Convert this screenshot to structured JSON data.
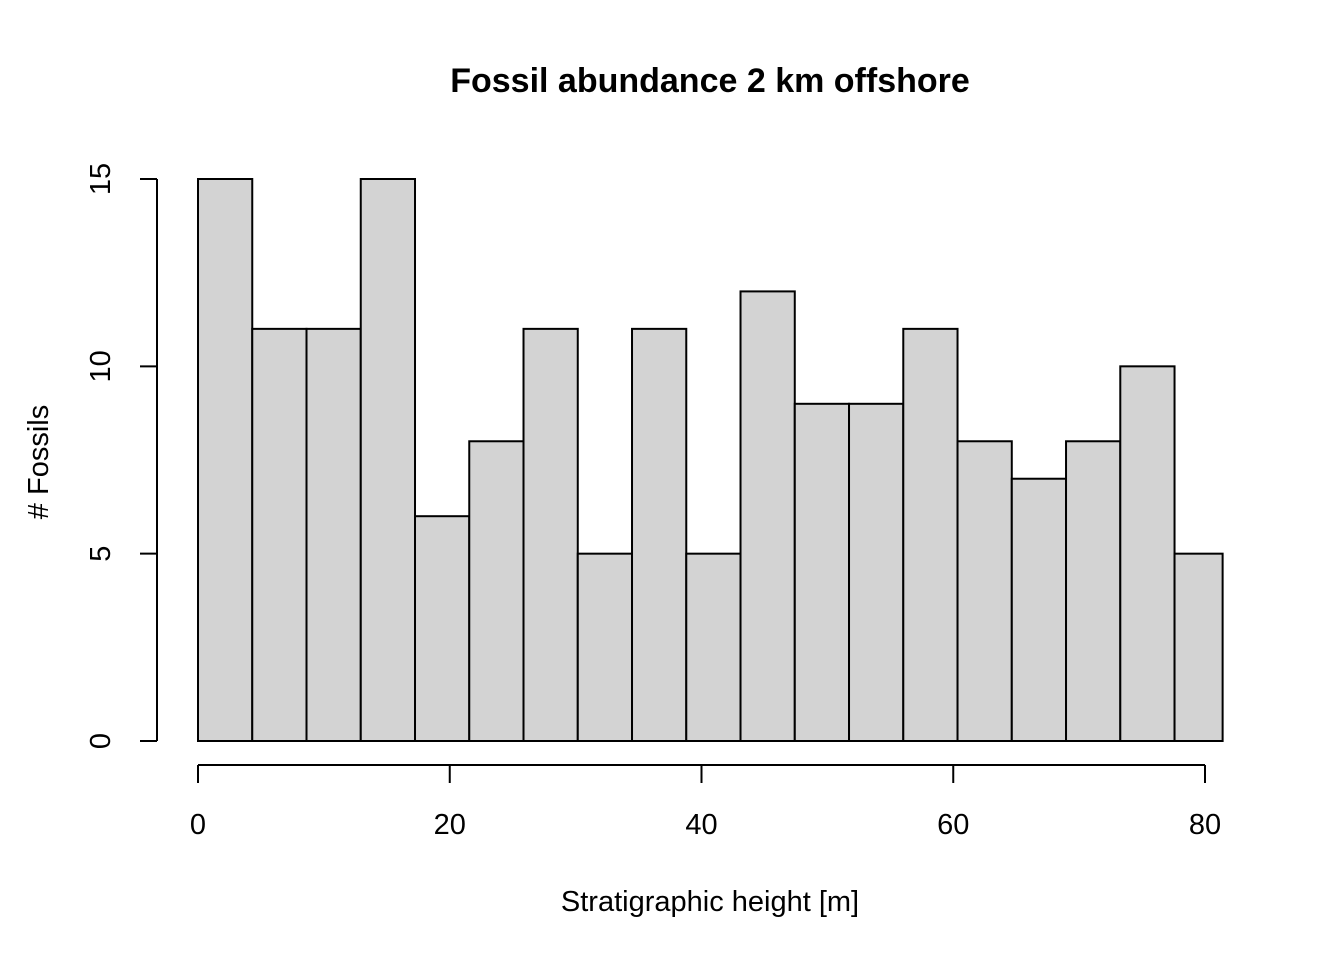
{
  "chart_data": {
    "type": "bar",
    "title": "Fossil abundance 2 km offshore",
    "xlabel": "Stratigraphic height [m]",
    "ylabel": "# Fossils",
    "bin_edges": [
      0,
      4.31,
      8.62,
      12.93,
      17.24,
      21.55,
      25.86,
      30.17,
      34.48,
      38.79,
      43.1,
      47.41,
      51.72,
      56.03,
      60.34,
      64.65,
      68.96,
      73.27,
      77.58,
      81.4
    ],
    "values": [
      15,
      11,
      11,
      15,
      6,
      8,
      11,
      5,
      11,
      5,
      12,
      9,
      9,
      11,
      8,
      7,
      8,
      10,
      5
    ],
    "xlim": [
      0,
      80
    ],
    "ylim": [
      0,
      15
    ],
    "xticks": [
      "0",
      "20",
      "40",
      "60",
      "80"
    ],
    "yticks": [
      "0",
      "5",
      "10",
      "15"
    ],
    "grid": false,
    "legend": "none"
  }
}
